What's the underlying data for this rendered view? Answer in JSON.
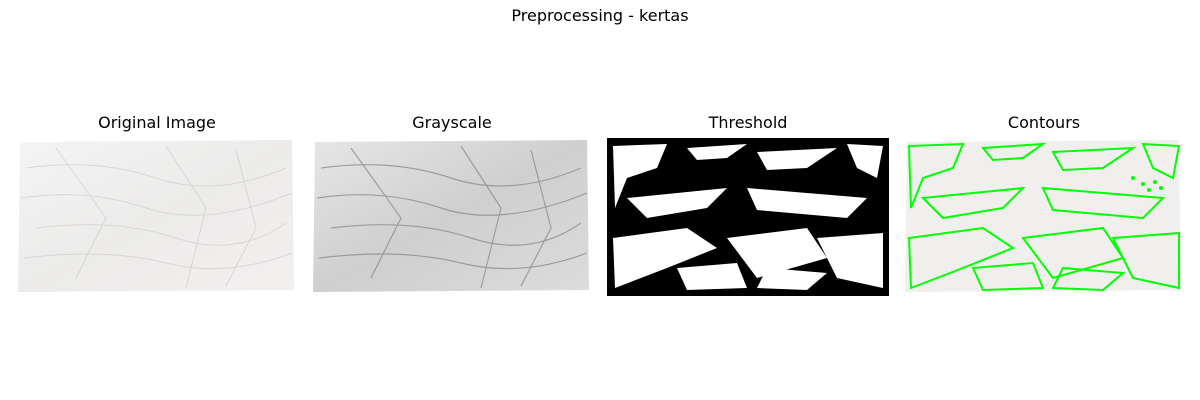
{
  "figure": {
    "suptitle": "Preprocessing - kertas"
  },
  "panels": [
    {
      "title": "Original Image"
    },
    {
      "title": "Grayscale"
    },
    {
      "title": "Threshold"
    },
    {
      "title": "Contours"
    }
  ],
  "colors": {
    "background": "#ffffff",
    "paper_light": "#f0efee",
    "paper_gray": "#c8c8c8",
    "threshold_black": "#000000",
    "threshold_white": "#ffffff",
    "contour_green": "#00ff00"
  }
}
